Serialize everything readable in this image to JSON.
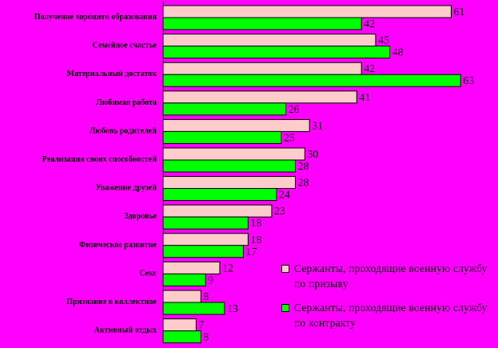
{
  "chart_data": {
    "type": "bar",
    "orientation": "horizontal",
    "categories": [
      "Получение хорошего образования",
      "Семейное счастье",
      "Материальный достаток",
      "Любимая работа",
      "Любовь родителей",
      "Реализация своих способностей",
      "Уважение друзей",
      "Здоровье",
      "Физическое развитие",
      "Секс",
      "Признание в коллективе",
      "Активный отдых"
    ],
    "series": [
      {
        "name": "Сержанты, проходящие военную службу по призыву",
        "color": "#FFCCCC",
        "values": [
          61,
          45,
          42,
          41,
          31,
          30,
          28,
          23,
          18,
          12,
          8,
          7
        ]
      },
      {
        "name": "Сержанты, проходящие военную службу по контракту",
        "color": "#00FF00",
        "values": [
          42,
          48,
          63,
          26,
          25,
          28,
          24,
          18,
          17,
          9,
          13,
          8
        ]
      }
    ],
    "xlim": [
      0,
      66
    ],
    "grid": false,
    "legend_position": "bottom-right"
  },
  "legend": [
    {
      "text": "Сержанты, проходящие военную службу по призыву",
      "color": "#FFCCCC"
    },
    {
      "text": "Сержанты, проходящие военную службу по контракту",
      "color": "#00FF00"
    }
  ],
  "colors": {
    "background": "#FF00FF",
    "bar_border": "#000000"
  }
}
